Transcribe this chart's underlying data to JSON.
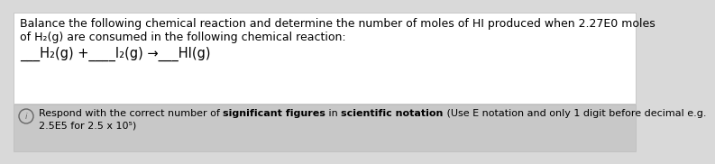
{
  "bg_color": "#d9d9d9",
  "box_bg_color": "#ffffff",
  "info_box_bg_color": "#c8c8c8",
  "title_text_line1": "Balance the following chemical reaction and determine the number of moles of HI produced when 2.27E0 moles",
  "title_text_line2": "of H₂(g) are consumed in the following chemical reaction:",
  "reaction_text": "___H₂(g) +____I₂(g) →___HI(g)",
  "info_parts": [
    [
      "Respond with the correct number of ",
      false
    ],
    [
      "significant figures",
      true
    ],
    [
      " in ",
      false
    ],
    [
      "scientific notation",
      true
    ],
    [
      " (Use E notation and only 1 digit before decimal e.g.",
      false
    ]
  ],
  "info_line2": "2.5E5 for 2.5 x 10⁵)",
  "font_size_main": 9.0,
  "font_size_reaction": 10.5,
  "font_size_info": 8.0
}
